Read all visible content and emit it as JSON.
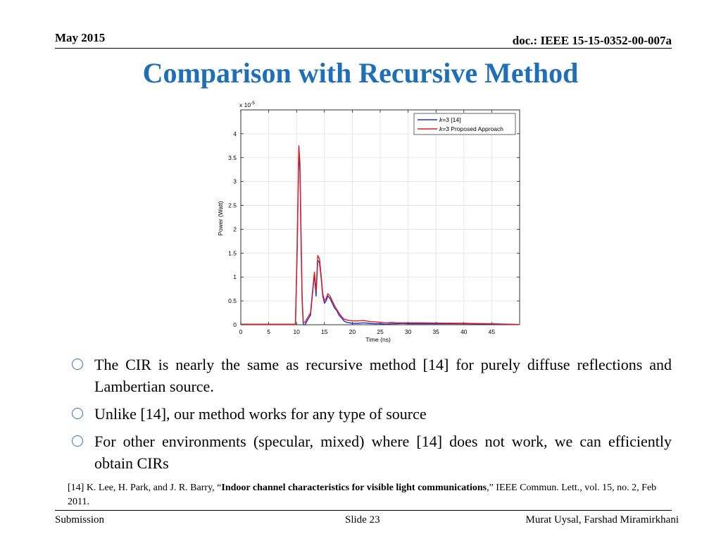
{
  "header": {
    "date": "May 2015",
    "doc": "doc.: IEEE 15-15-0352-00-007a"
  },
  "title": "Comparison with Recursive Method",
  "chart_data": {
    "type": "line",
    "title": "",
    "xlabel": "Time (ns)",
    "ylabel": "Power (Watt)",
    "y_multiplier": "x 10",
    "y_multiplier_exp": "-5",
    "xlim": [
      0,
      50
    ],
    "ylim": [
      0,
      4.5
    ],
    "xticks": [
      0,
      5,
      10,
      15,
      20,
      25,
      30,
      35,
      40,
      45
    ],
    "yticks": [
      0,
      0.5,
      1,
      1.5,
      2,
      2.5,
      3,
      3.5,
      4
    ],
    "ytick_labels": [
      "0",
      "0.5",
      "1",
      "1.5",
      "2",
      "2.5",
      "3",
      "3.5",
      "4"
    ],
    "grid": true,
    "legend_position": "top-right",
    "series": [
      {
        "name": "k=3  [14]",
        "name_italic": "k",
        "name_rest": "=3  [14]",
        "color": "#1f2fd6",
        "x": [
          0,
          9.8,
          10.1,
          10.4,
          10.6,
          10.8,
          11.0,
          11.2,
          11.5,
          12.0,
          12.5,
          12.9,
          13.2,
          13.5,
          13.8,
          14.1,
          14.4,
          14.7,
          15.0,
          15.3,
          15.6,
          16.0,
          16.4,
          16.8,
          17.2,
          17.6,
          18.0,
          18.5,
          19.0,
          19.5,
          20.0,
          21,
          22,
          23,
          24,
          25,
          26,
          27,
          28,
          29,
          30,
          32,
          35,
          40,
          45,
          50
        ],
        "y": [
          0.01,
          0.01,
          1.5,
          3.7,
          3.2,
          1.8,
          0.5,
          0.0,
          0.0,
          0.1,
          0.2,
          0.7,
          1.05,
          0.6,
          1.35,
          1.3,
          1.0,
          0.6,
          0.45,
          0.5,
          0.6,
          0.55,
          0.45,
          0.35,
          0.3,
          0.2,
          0.15,
          0.08,
          0.05,
          0.04,
          0.03,
          0.03,
          0.04,
          0.03,
          0.02,
          0.02,
          0.01,
          0.02,
          0.02,
          0.03,
          0.02,
          0.02,
          0.02,
          0.02,
          0.015,
          0.005
        ]
      },
      {
        "name": "k=3  Proposed Approach",
        "name_italic": "k",
        "name_rest": "=3  Proposed Approach",
        "color": "#e01a1a",
        "x": [
          0,
          9.8,
          10.1,
          10.4,
          10.6,
          10.8,
          11.0,
          11.2,
          11.5,
          12.0,
          12.5,
          12.9,
          13.2,
          13.5,
          13.8,
          14.1,
          14.4,
          14.7,
          15.0,
          15.3,
          15.6,
          16.0,
          16.4,
          16.8,
          17.2,
          17.6,
          18.0,
          18.5,
          19.0,
          19.5,
          20.0,
          21,
          22,
          23,
          24,
          25,
          26,
          27,
          28,
          29,
          30,
          32,
          35,
          40,
          45,
          50
        ],
        "y": [
          0.01,
          0.01,
          1.6,
          3.75,
          3.4,
          2.0,
          0.6,
          0.05,
          0.05,
          0.15,
          0.25,
          0.75,
          1.1,
          0.7,
          1.45,
          1.38,
          1.05,
          0.65,
          0.5,
          0.55,
          0.65,
          0.6,
          0.5,
          0.4,
          0.32,
          0.25,
          0.18,
          0.12,
          0.1,
          0.09,
          0.08,
          0.08,
          0.09,
          0.07,
          0.06,
          0.05,
          0.04,
          0.05,
          0.04,
          0.04,
          0.04,
          0.04,
          0.035,
          0.03,
          0.02,
          0.005
        ]
      }
    ]
  },
  "bullets": [
    "The CIR is nearly the same as recursive method [14] for purely diffuse reflections and Lambertian source.",
    "Unlike [14], our method works for any type of source",
    "For other environments (specular, mixed) where [14] does not work, we can efficiently obtain CIRs"
  ],
  "reference": {
    "prefix": "[14] K. Lee, H. Park, and J. R. Barry, “",
    "bold": "Indoor channel characteristics for visible light communications",
    "suffix": ",” IEEE Commun. Lett., vol. 15,  no. 2, Feb 2011."
  },
  "footer": {
    "left": "Submission",
    "middle": "Slide 23",
    "right": "Murat Uysal, Farshad Miramirkhani"
  }
}
